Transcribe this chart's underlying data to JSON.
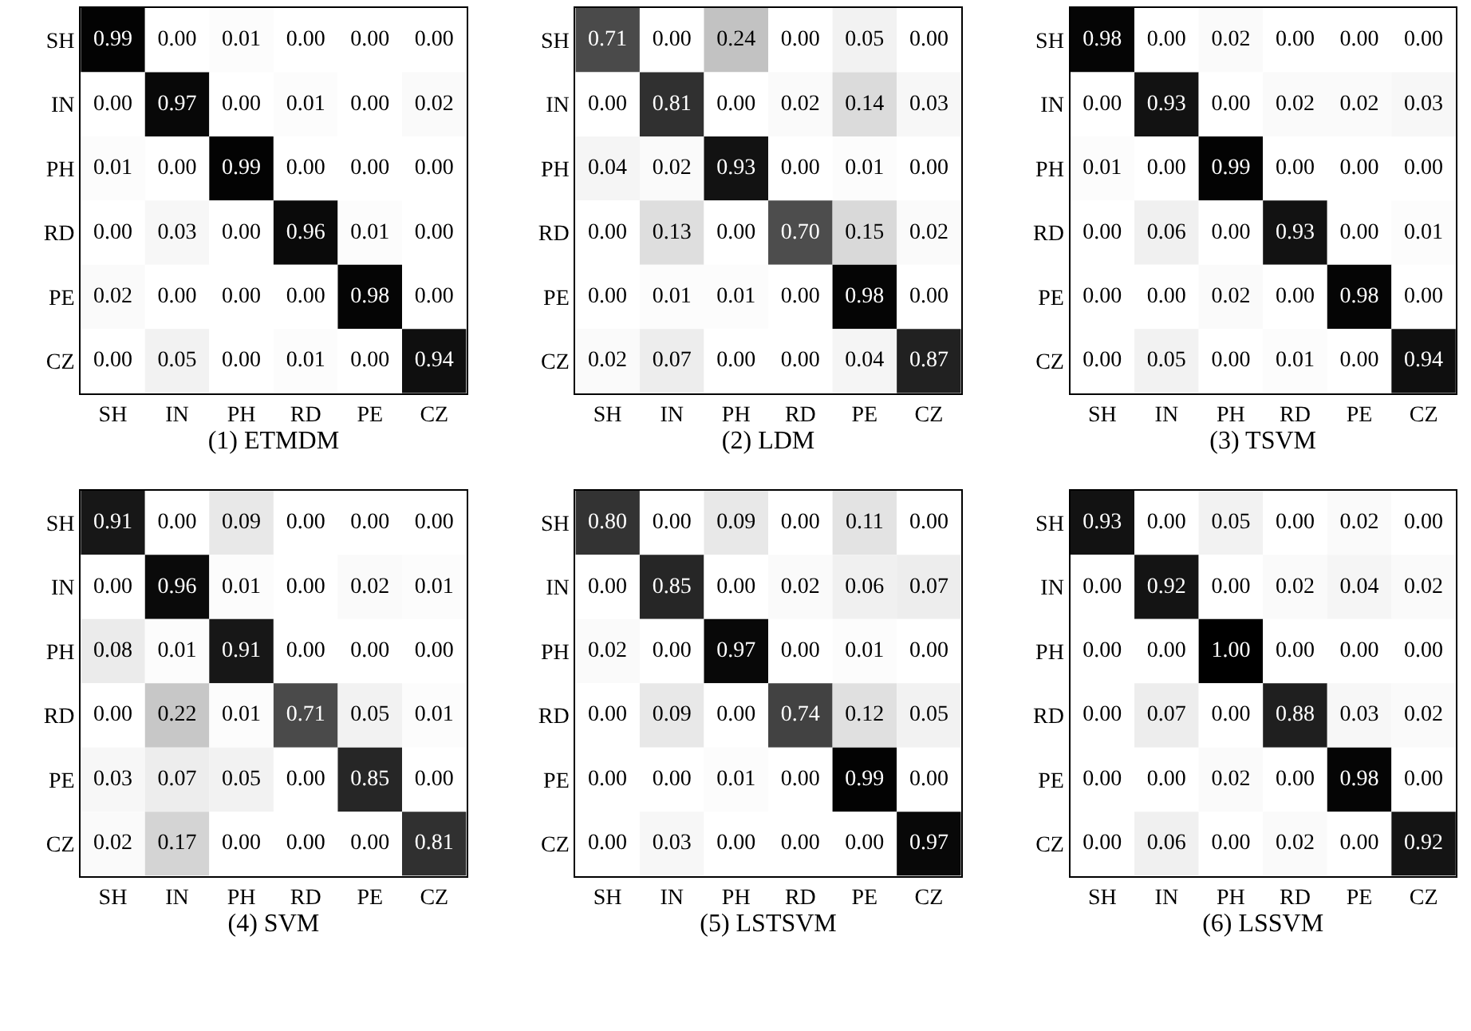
{
  "chart_data": [
    {
      "type": "heatmap",
      "xlabel": "(1) ETMDM",
      "categories": [
        "SH",
        "IN",
        "PH",
        "RD",
        "PE",
        "CZ"
      ],
      "y_categories": [
        "SH",
        "IN",
        "PH",
        "RD",
        "PE",
        "CZ"
      ],
      "cells": [
        [
          0.99,
          0,
          0.01,
          0,
          0,
          0
        ],
        [
          0,
          0.97,
          0,
          0.01,
          0,
          0.02
        ],
        [
          0.01,
          0,
          0.99,
          0,
          0,
          0
        ],
        [
          0,
          0.03,
          0,
          0.96,
          0.01,
          0
        ],
        [
          0.02,
          0,
          0,
          0,
          0.98,
          0
        ],
        [
          0,
          0.05,
          0,
          0.01,
          0,
          0.94
        ]
      ],
      "cell_labels": [
        [
          "0.99",
          "0.00",
          "0.01",
          "0.00",
          "0.00",
          "0.00"
        ],
        [
          "0.00",
          "0.97",
          "0.00",
          "0.01",
          "0.00",
          "0.02"
        ],
        [
          "0.01",
          "0.00",
          "0.99",
          "0.00",
          "0.00",
          "0.00"
        ],
        [
          "0.00",
          "0.03",
          "0.00",
          "0.96",
          "0.01",
          "0.00"
        ],
        [
          "0.02",
          "0.00",
          "0.00",
          "0.00",
          "0.98",
          "0.00"
        ],
        [
          "0.00",
          "0.05",
          "0.00",
          "0.01",
          "0.00",
          "0.94"
        ]
      ]
    },
    {
      "type": "heatmap",
      "xlabel": "(2) LDM",
      "categories": [
        "SH",
        "IN",
        "PH",
        "RD",
        "PE",
        "CZ"
      ],
      "y_categories": [
        "SH",
        "IN",
        "PH",
        "RD",
        "PE",
        "CZ"
      ],
      "cells": [
        [
          0.71,
          0,
          0.24,
          0,
          0.05,
          0
        ],
        [
          0,
          0.81,
          0,
          0.02,
          0.14,
          0.03
        ],
        [
          0.04,
          0.02,
          0.93,
          0,
          0.01,
          0
        ],
        [
          0,
          0.13,
          0,
          0.7,
          0.15,
          0.02
        ],
        [
          0,
          0.01,
          0.01,
          0,
          0.98,
          0
        ],
        [
          0.02,
          0.07,
          0,
          0,
          0.04,
          0.87
        ]
      ],
      "cell_labels": [
        [
          "0.71",
          "0.00",
          "0.24",
          "0.00",
          "0.05",
          "0.00"
        ],
        [
          "0.00",
          "0.81",
          "0.00",
          "0.02",
          "0.14",
          "0.03"
        ],
        [
          "0.04",
          "0.02",
          "0.93",
          "0.00",
          "0.01",
          "0.00"
        ],
        [
          "0.00",
          "0.13",
          "0.00",
          "0.70",
          "0.15",
          "0.02"
        ],
        [
          "0.00",
          "0.01",
          "0.01",
          "0.00",
          "0.98",
          "0.00"
        ],
        [
          "0.02",
          "0.07",
          "0.00",
          "0.00",
          "0.04",
          "0.87"
        ]
      ]
    },
    {
      "type": "heatmap",
      "xlabel": "(3) TSVM",
      "categories": [
        "SH",
        "IN",
        "PH",
        "RD",
        "PE",
        "CZ"
      ],
      "y_categories": [
        "SH",
        "IN",
        "PH",
        "RD",
        "PE",
        "CZ"
      ],
      "cells": [
        [
          0.98,
          0,
          0.02,
          0,
          0,
          0
        ],
        [
          0,
          0.93,
          0,
          0.02,
          0.02,
          0.03
        ],
        [
          0.01,
          0,
          0.99,
          0,
          0,
          0
        ],
        [
          0,
          0.06,
          0,
          0.93,
          0,
          0.01
        ],
        [
          0,
          0,
          0.02,
          0,
          0.98,
          0
        ],
        [
          0,
          0.05,
          0,
          0.01,
          0,
          0.94
        ]
      ],
      "cell_labels": [
        [
          "0.98",
          "0.00",
          "0.02",
          "0.00",
          "0.00",
          "0.00"
        ],
        [
          "0.00",
          "0.93",
          "0.00",
          "0.02",
          "0.02",
          "0.03"
        ],
        [
          "0.01",
          "0.00",
          "0.99",
          "0.00",
          "0.00",
          "0.00"
        ],
        [
          "0.00",
          "0.06",
          "0.00",
          "0.93",
          "0.00",
          "0.01"
        ],
        [
          "0.00",
          "0.00",
          "0.02",
          "0.00",
          "0.98",
          "0.00"
        ],
        [
          "0.00",
          "0.05",
          "0.00",
          "0.01",
          "0.00",
          "0.94"
        ]
      ]
    },
    {
      "type": "heatmap",
      "xlabel": "(4) SVM",
      "categories": [
        "SH",
        "IN",
        "PH",
        "RD",
        "PE",
        "CZ"
      ],
      "y_categories": [
        "SH",
        "IN",
        "PH",
        "RD",
        "PE",
        "CZ"
      ],
      "cells": [
        [
          0.91,
          0,
          0.09,
          0,
          0,
          0
        ],
        [
          0,
          0.96,
          0.01,
          0,
          0.02,
          0.01
        ],
        [
          0.08,
          0.01,
          0.91,
          0,
          0,
          0
        ],
        [
          0,
          0.22,
          0.01,
          0.71,
          0.05,
          0.01
        ],
        [
          0.03,
          0.07,
          0.05,
          0,
          0.85,
          0
        ],
        [
          0.02,
          0.17,
          0,
          0,
          0,
          0.81
        ]
      ],
      "cell_labels": [
        [
          "0.91",
          "0.00",
          "0.09",
          "0.00",
          "0.00",
          "0.00"
        ],
        [
          "0.00",
          "0.96",
          "0.01",
          "0.00",
          "0.02",
          "0.01"
        ],
        [
          "0.08",
          "0.01",
          "0.91",
          "0.00",
          "0.00",
          "0.00"
        ],
        [
          "0.00",
          "0.22",
          "0.01",
          "0.71",
          "0.05",
          "0.01"
        ],
        [
          "0.03",
          "0.07",
          "0.05",
          "0.00",
          "0.85",
          "0.00"
        ],
        [
          "0.02",
          "0.17",
          "0.00",
          "0.00",
          "0.00",
          "0.81"
        ]
      ]
    },
    {
      "type": "heatmap",
      "xlabel": "(5) LSTSVM",
      "categories": [
        "SH",
        "IN",
        "PH",
        "RD",
        "PE",
        "CZ"
      ],
      "y_categories": [
        "SH",
        "IN",
        "PH",
        "RD",
        "PE",
        "CZ"
      ],
      "cells": [
        [
          0.8,
          0,
          0.09,
          0,
          0.11,
          0
        ],
        [
          0,
          0.85,
          0,
          0.02,
          0.06,
          0.07
        ],
        [
          0.02,
          0,
          0.97,
          0,
          0.01,
          0
        ],
        [
          0,
          0.09,
          0,
          0.74,
          0.12,
          0.05
        ],
        [
          0,
          0,
          0.01,
          0,
          0.99,
          0
        ],
        [
          0,
          0.03,
          0,
          0,
          0,
          0.97
        ]
      ],
      "cell_labels": [
        [
          "0.80",
          "0.00",
          "0.09",
          "0.00",
          "0.11",
          "0.00"
        ],
        [
          "0.00",
          "0.85",
          "0.00",
          "0.02",
          "0.06",
          "0.07"
        ],
        [
          "0.02",
          "0.00",
          "0.97",
          "0.00",
          "0.01",
          "0.00"
        ],
        [
          "0.00",
          "0.09",
          "0.00",
          "0.74",
          "0.12",
          "0.05"
        ],
        [
          "0.00",
          "0.00",
          "0.01",
          "0.00",
          "0.99",
          "0.00"
        ],
        [
          "0.00",
          "0.03",
          "0.00",
          "0.00",
          "0.00",
          "0.97"
        ]
      ]
    },
    {
      "type": "heatmap",
      "xlabel": "(6) LSSVM",
      "categories": [
        "SH",
        "IN",
        "PH",
        "RD",
        "PE",
        "CZ"
      ],
      "y_categories": [
        "SH",
        "IN",
        "PH",
        "RD",
        "PE",
        "CZ"
      ],
      "cells": [
        [
          0.93,
          0,
          0.05,
          0,
          0.02,
          0
        ],
        [
          0,
          0.92,
          0,
          0.02,
          0.04,
          0.02
        ],
        [
          0,
          0,
          1.0,
          0,
          0,
          0
        ],
        [
          0,
          0.07,
          0,
          0.88,
          0.03,
          0.02
        ],
        [
          0,
          0,
          0.02,
          0,
          0.98,
          0
        ],
        [
          0,
          0.06,
          0,
          0.02,
          0,
          0.92
        ]
      ],
      "cell_labels": [
        [
          "0.93",
          "0.00",
          "0.05",
          "0.00",
          "0.02",
          "0.00"
        ],
        [
          "0.00",
          "0.92",
          "0.00",
          "0.02",
          "0.04",
          "0.02"
        ],
        [
          "0.00",
          "0.00",
          "1.00",
          "0.00",
          "0.00",
          "0.00"
        ],
        [
          "0.00",
          "0.07",
          "0.00",
          "0.88",
          "0.03",
          "0.02"
        ],
        [
          "0.00",
          "0.00",
          "0.02",
          "0.00",
          "0.98",
          "0.00"
        ],
        [
          "0.00",
          "0.06",
          "0.00",
          "0.02",
          "0.00",
          "0.92"
        ]
      ]
    }
  ]
}
